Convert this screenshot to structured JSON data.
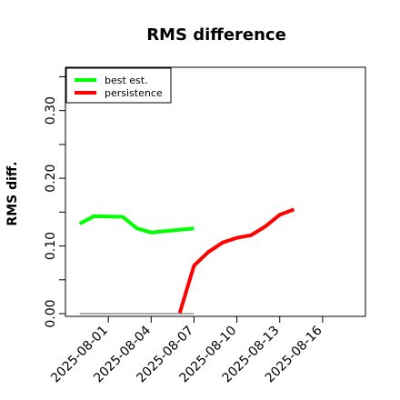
{
  "chart_data": {
    "type": "line",
    "title": "RMS difference",
    "ylabel": "RMS diff.",
    "xlabel": "",
    "ylim": [
      -0.004,
      0.364
    ],
    "yticks": [
      0.0,
      0.05,
      0.1,
      0.15,
      0.2,
      0.25,
      0.3,
      0.35
    ],
    "ytick_labels": [
      "0.00",
      "",
      "0.10",
      "",
      "0.20",
      "",
      "0.30",
      ""
    ],
    "xlim": [
      "2025-07-29",
      "2025-08-19"
    ],
    "xticks": [
      "2025-08-01",
      "2025-08-04",
      "2025-08-07",
      "2025-08-10",
      "2025-08-13",
      "2025-08-16"
    ],
    "xtick_labels": [
      "2025-08-01",
      "2025-08-04",
      "2025-08-07",
      "2025-08-10",
      "2025-08-13",
      "2025-08-16"
    ],
    "legend": {
      "position": "top-left"
    },
    "reference_line": {
      "y": 0.0,
      "x_start": "2025-07-30",
      "x_end": "2025-08-07",
      "color": "#808080"
    },
    "series": [
      {
        "name": "best est.",
        "color": "#00ff00",
        "points": [
          {
            "x": "2025-07-30",
            "y": 0.133
          },
          {
            "x": "2025-07-31",
            "y": 0.144
          },
          {
            "x": "2025-08-02",
            "y": 0.143
          },
          {
            "x": "2025-08-03",
            "y": 0.126
          },
          {
            "x": "2025-08-04",
            "y": 0.12
          },
          {
            "x": "2025-08-07",
            "y": 0.126
          }
        ]
      },
      {
        "name": "persistence",
        "color": "#ff0000",
        "points": [
          {
            "x": "2025-08-06",
            "y": 0.001
          },
          {
            "x": "2025-08-07",
            "y": 0.071
          },
          {
            "x": "2025-08-08",
            "y": 0.091
          },
          {
            "x": "2025-08-09",
            "y": 0.105
          },
          {
            "x": "2025-08-10",
            "y": 0.112
          },
          {
            "x": "2025-08-11",
            "y": 0.116
          },
          {
            "x": "2025-08-12",
            "y": 0.129
          },
          {
            "x": "2025-08-13",
            "y": 0.146
          },
          {
            "x": "2025-08-14",
            "y": 0.154
          }
        ]
      }
    ]
  }
}
